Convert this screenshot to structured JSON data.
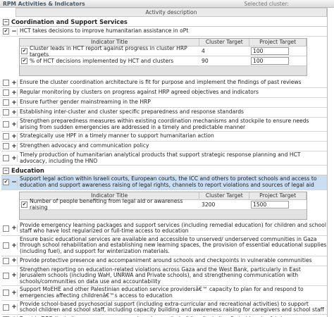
{
  "header": {
    "title": "RPM Activities & Indicators",
    "selected_cluster_label": "Selected cluster:"
  },
  "table": {
    "column_header": "Activity description",
    "indicator_headers": [
      "Indicator Title",
      "Cluster Target",
      "Project Target"
    ],
    "sections": [
      {
        "title": "Coordination and Support Services",
        "activities": [
          {
            "text": "HCT takes decisions to improve humanitarian assistance in oPt",
            "checked": true,
            "expanded": true,
            "highlighted": false,
            "indicators": [
              {
                "title": "Cluster leads in HCT report against progress in cluster HRP targets",
                "checked": true,
                "cluster_target": 4,
                "project_target": 100
              },
              {
                "title": "% of HCT decisions implemented by HCT and clusters",
                "checked": true,
                "cluster_target": 90,
                "project_target": 100
              }
            ]
          },
          {
            "text": "Ensure the cluster coordination architecture is fit for purpose and implement the findings of past reviews",
            "checked": false,
            "expanded": false,
            "highlighted": false
          },
          {
            "text": "Regular monitoring by clusters on progress against HRP agreed objectives and indicators",
            "checked": false,
            "expanded": false,
            "highlighted": false
          },
          {
            "text": "Ensure further gender mainstreaming in the HRP",
            "checked": false,
            "expanded": false,
            "highlighted": false
          },
          {
            "text": "Establishing inter-cluster and cluster specific preparedness and response standards",
            "checked": false,
            "expanded": false,
            "highlighted": false
          },
          {
            "text": "Strengthen preparedness measures within existing coordination mechanisms and stockpile to ensure needs arising from sudden emergencies are addressed in a timely and predictable manner",
            "checked": false,
            "expanded": false,
            "highlighted": false
          },
          {
            "text": "Strategically use HPF in a timely manner to support humanitarian action",
            "checked": false,
            "expanded": false,
            "highlighted": false
          },
          {
            "text": "Strengthen advocacy and communication policy",
            "checked": false,
            "expanded": false,
            "highlighted": false
          },
          {
            "text": "Timely production of humanitarian analytical products that support strategic response planning and HCT advocacy, including the HNO",
            "checked": false,
            "expanded": false,
            "highlighted": false
          }
        ]
      },
      {
        "title": "Education",
        "activities": [
          {
            "text": "Support legal action within Israeli courts, European courts, the ICC and others to protect schools and access to education and support awareness raising of legal rights, channels to report violations and sources of legal aid",
            "checked": true,
            "expanded": true,
            "highlighted": true,
            "indicators": [
              {
                "title": "Number of people benefiting from legal aid or awareness raising",
                "checked": true,
                "cluster_target": 3200,
                "project_target": 1500
              }
            ]
          },
          {
            "text": "Provide emergency learning packages and support services (including remedial education) for children and school staff who have lost regularized or full-time access to education",
            "checked": false,
            "expanded": false,
            "highlighted": false
          },
          {
            "text": "Ensure basic educational services are available and accessible to unserved/ underserved communities in Gaza through school rehabilitation and establishing new learning spaces, the provision of essential educational supplies (including fuel), and support for winterization materials.",
            "checked": false,
            "expanded": false,
            "highlighted": false
          },
          {
            "text": "Provide protective presence and accompaniment around schools and checkpoints in vulnerable communities",
            "checked": false,
            "expanded": false,
            "highlighted": false
          },
          {
            "text": "Strengthen reporting on education-related violations across Gaza and the West Bank, particularly in East Jerusalem schools (including WaH, UNRWA and Private schools), and strengthening communication with schools/communities on data use and accountability",
            "checked": false,
            "expanded": false,
            "highlighted": false
          },
          {
            "text": "Support MoEHE and other Palestinian education service providersâ€™ capacity to plan for and respond to emergencies affecting childrenâ€™s access to education",
            "checked": false,
            "expanded": false,
            "highlighted": false
          },
          {
            "text": "Provide school-based psychosocial support (including extra-curricular and recreational activities) to support school children and school staff, including capacity building and awareness raising for caregivers and school staff",
            "checked": false,
            "expanded": false,
            "highlighted": false
          },
          {
            "text": "Provide DRR (including emergency preparedness) capacity building (including first aid and safety)",
            "checked": false,
            "expanded": false,
            "highlighted": false
          }
        ]
      }
    ]
  }
}
